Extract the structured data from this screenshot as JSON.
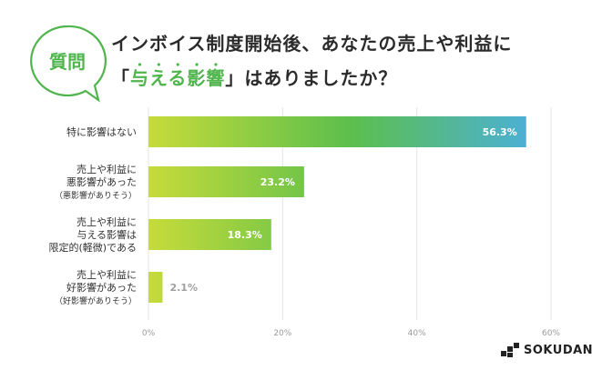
{
  "badge": {
    "label": "質問"
  },
  "title": {
    "line1": "インボイス制度開始後、あなたの売上や利益に",
    "line2_quote_open": "「",
    "line2_highlight": "与える影響",
    "line2_quote_close": "」",
    "line2_rest": "はありましたか？"
  },
  "colors": {
    "accent": "#4fb54c",
    "bar_start": "#c6db3a",
    "bar_mid": "#5cbf4c",
    "bar_end": "#4aaee6",
    "grid": "#e4e4e4",
    "label_small_value": "#a0a0a0"
  },
  "chart_data": {
    "type": "bar",
    "orientation": "horizontal",
    "categories": [
      [
        "特に影響はない"
      ],
      [
        "売上や利益に",
        "悪影響があった",
        "（悪影響がありそう）"
      ],
      [
        "売上や利益に",
        "与える影響は",
        "限定的(軽微)である"
      ],
      [
        "売上や利益に",
        "好影響があった",
        "（好影響がありそう）"
      ]
    ],
    "values": [
      56.3,
      23.2,
      18.3,
      2.1
    ],
    "value_labels": [
      "56.3%",
      "23.2%",
      "18.3%",
      "2.1%"
    ],
    "xlim": [
      0,
      60
    ],
    "xticks": [
      "0%",
      "20%",
      "40%",
      "60%"
    ],
    "grid": true,
    "title": "インボイス制度開始後、あなたの売上や利益に「与える影響」はありましたか？"
  },
  "logo": {
    "text": "SOKUDAN",
    "icon": "sokudan-logo-icon"
  }
}
